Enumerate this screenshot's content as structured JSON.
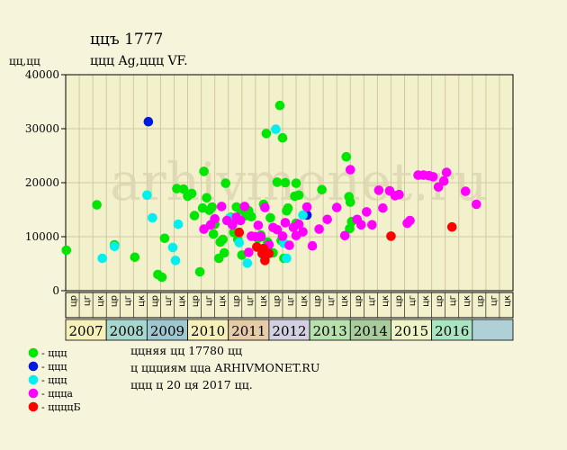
{
  "header": {
    "title": "ццъ 1777",
    "subtitle": "ццц Ag,ццц VF.",
    "ylabel": "цц,цц"
  },
  "watermark": "arhivmonet.ru",
  "legend": [
    {
      "label": "- ццц",
      "color": "#00e600"
    },
    {
      "label": "- ццц",
      "color": "#0018e0"
    },
    {
      "label": "- ццц",
      "color": "#00f0f0"
    },
    {
      "label": "- ццца",
      "color": "#ff00ff"
    },
    {
      "label": "- ццццБ",
      "color": "#ff0000"
    }
  ],
  "footer": [
    "ццняя цц 17780 цц",
    "ц ццциям цца ARHIVMONET.RU",
    "ццц ц 20 ця 2017 цц."
  ],
  "chart_data": {
    "type": "scatter",
    "ylim": [
      0,
      40000
    ],
    "yticks": [
      "0",
      "10000",
      "20000",
      "30000",
      "40000"
    ],
    "xlim": [
      0,
      33
    ],
    "quarter_labels": [
      "цр",
      "цг",
      "цк",
      "цр",
      "цг",
      "цк",
      "цр",
      "цг",
      "цк",
      "цр",
      "цг",
      "цк",
      "цр",
      "цг",
      "цк",
      "цр",
      "цг",
      "цк",
      "цр",
      "цг",
      "цк",
      "цр",
      "цг",
      "цк",
      "цр",
      "цг",
      "цк",
      "цр",
      "цг",
      "цк",
      "цр",
      "цг",
      "цк"
    ],
    "years": [
      {
        "label": "2007",
        "color": "#f6f0b9"
      },
      {
        "label": "2008",
        "color": "#a6d8cf"
      },
      {
        "label": "2009",
        "color": "#9fc7cf"
      },
      {
        "label": "2010",
        "color": "#f6f0b9"
      },
      {
        "label": "2011",
        "color": "#e5cba6"
      },
      {
        "label": "2012",
        "color": "#d3d0e1"
      },
      {
        "label": "2013",
        "color": "#b7e1ac"
      },
      {
        "label": "2014",
        "color": "#a8cc9c"
      },
      {
        "label": "2015",
        "color": "#eef4c6"
      },
      {
        "label": "2016",
        "color": "#a9e5c1"
      },
      {
        "label": "",
        "color": "#b0d0d8"
      }
    ],
    "series": [
      {
        "color": "#00e600",
        "points": [
          [
            0.05,
            7500
          ],
          [
            2.3,
            15900
          ],
          [
            3.6,
            8500
          ],
          [
            5.1,
            6200
          ],
          [
            6.8,
            3000
          ],
          [
            7.1,
            2500
          ],
          [
            7.3,
            9700
          ],
          [
            8.2,
            18900
          ],
          [
            8.7,
            18800
          ],
          [
            9.0,
            17500
          ],
          [
            9.3,
            18000
          ],
          [
            9.5,
            13900
          ],
          [
            9.9,
            3500
          ],
          [
            10.1,
            15300
          ],
          [
            10.2,
            22100
          ],
          [
            10.4,
            17200
          ],
          [
            10.6,
            14900
          ],
          [
            10.8,
            15500
          ],
          [
            10.9,
            10500
          ],
          [
            11.0,
            12300
          ],
          [
            11.3,
            6000
          ],
          [
            11.4,
            9000
          ],
          [
            11.6,
            9500
          ],
          [
            11.8,
            19900
          ],
          [
            11.7,
            7000
          ],
          [
            12.2,
            13600
          ],
          [
            12.4,
            10800
          ],
          [
            12.6,
            15500
          ],
          [
            12.7,
            9500
          ],
          [
            12.9,
            15000
          ],
          [
            13.0,
            6600
          ],
          [
            13.3,
            13900
          ],
          [
            13.5,
            14800
          ],
          [
            13.7,
            13700
          ],
          [
            14.2,
            9700
          ],
          [
            14.4,
            10300
          ],
          [
            14.6,
            16000
          ],
          [
            14.8,
            29100
          ],
          [
            14.9,
            9000
          ],
          [
            15.1,
            13500
          ],
          [
            15.3,
            7000
          ],
          [
            15.6,
            20100
          ],
          [
            15.8,
            34300
          ],
          [
            15.9,
            9300
          ],
          [
            16.0,
            28300
          ],
          [
            16.1,
            6000
          ],
          [
            16.2,
            20000
          ],
          [
            16.3,
            14800
          ],
          [
            16.4,
            15300
          ],
          [
            16.9,
            17500
          ],
          [
            17.0,
            19900
          ],
          [
            17.2,
            17700
          ],
          [
            17.0,
            12500
          ],
          [
            18.9,
            18700
          ],
          [
            20.7,
            24800
          ],
          [
            20.9,
            17400
          ],
          [
            20.95,
            11500
          ],
          [
            21.0,
            16400
          ],
          [
            21.1,
            12800
          ]
        ]
      },
      {
        "color": "#0018e0",
        "points": [
          [
            6.1,
            31300
          ],
          [
            17.8,
            14000
          ]
        ]
      },
      {
        "color": "#00f0f0",
        "points": [
          [
            2.7,
            6000
          ],
          [
            3.6,
            8200
          ],
          [
            6.0,
            17700
          ],
          [
            6.4,
            13500
          ],
          [
            7.9,
            8000
          ],
          [
            8.1,
            5600
          ],
          [
            8.3,
            12300
          ],
          [
            12.1,
            13500
          ],
          [
            12.8,
            8900
          ],
          [
            13.4,
            5100
          ],
          [
            14.5,
            6800
          ],
          [
            15.5,
            29900
          ],
          [
            16.1,
            8800
          ],
          [
            16.3,
            6000
          ],
          [
            17.5,
            14000
          ]
        ]
      },
      {
        "color": "#ff00ff",
        "points": [
          [
            10.2,
            11400
          ],
          [
            10.7,
            12200
          ],
          [
            11.0,
            13300
          ],
          [
            11.5,
            15600
          ],
          [
            11.9,
            13000
          ],
          [
            12.3,
            12200
          ],
          [
            12.6,
            13600
          ],
          [
            12.9,
            13000
          ],
          [
            13.2,
            15600
          ],
          [
            13.5,
            7100
          ],
          [
            13.7,
            10100
          ],
          [
            14.0,
            10000
          ],
          [
            14.2,
            12100
          ],
          [
            14.4,
            10000
          ],
          [
            14.7,
            15400
          ],
          [
            15.0,
            8500
          ],
          [
            15.3,
            11700
          ],
          [
            15.6,
            11300
          ],
          [
            16.0,
            10100
          ],
          [
            16.2,
            12600
          ],
          [
            16.5,
            8400
          ],
          [
            16.8,
            11700
          ],
          [
            17.0,
            10200
          ],
          [
            17.2,
            12300
          ],
          [
            17.5,
            10900
          ],
          [
            17.8,
            15500
          ],
          [
            18.2,
            8300
          ],
          [
            18.7,
            11400
          ],
          [
            19.3,
            13200
          ],
          [
            20.0,
            15400
          ],
          [
            20.6,
            10200
          ],
          [
            21.0,
            22400
          ],
          [
            21.5,
            13200
          ],
          [
            21.8,
            12200
          ],
          [
            22.2,
            14600
          ],
          [
            22.6,
            12200
          ],
          [
            23.1,
            18600
          ],
          [
            23.4,
            15300
          ],
          [
            23.9,
            18500
          ],
          [
            24.3,
            17600
          ],
          [
            24.6,
            17800
          ],
          [
            25.2,
            12500
          ],
          [
            25.4,
            13000
          ],
          [
            26.0,
            21400
          ],
          [
            26.4,
            21400
          ],
          [
            26.8,
            21300
          ],
          [
            27.1,
            21100
          ],
          [
            27.5,
            19200
          ],
          [
            27.9,
            20300
          ],
          [
            28.1,
            21900
          ],
          [
            29.5,
            18400
          ],
          [
            30.3,
            16000
          ]
        ]
      },
      {
        "color": "#ff0000",
        "points": [
          [
            12.8,
            10800
          ],
          [
            14.1,
            8100
          ],
          [
            14.5,
            6900
          ],
          [
            14.6,
            7800
          ],
          [
            14.7,
            5600
          ],
          [
            15.0,
            6900
          ],
          [
            24.0,
            10100
          ],
          [
            28.5,
            11800
          ]
        ]
      }
    ]
  }
}
